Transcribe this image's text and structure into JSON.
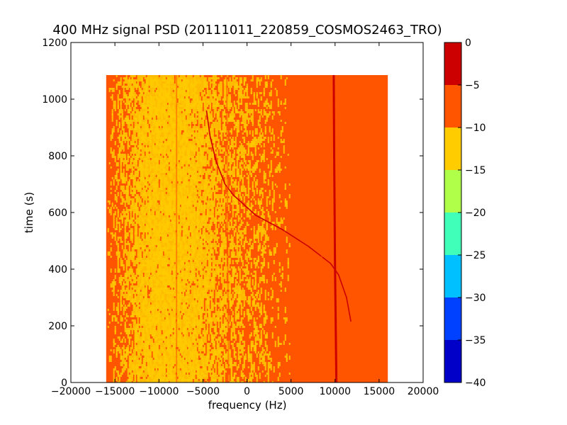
{
  "chart_data": {
    "type": "heatmap",
    "title": "400 MHz signal PSD (20111011_220859_COSMOS2463_TRO)",
    "xlabel": "frequency (Hz)",
    "ylabel": "time (s)",
    "xlim": [
      -20000,
      20000
    ],
    "ylim": [
      0,
      1200
    ],
    "xticks": [
      -20000,
      -15000,
      -10000,
      -5000,
      0,
      5000,
      10000,
      15000,
      20000
    ],
    "yticks": [
      0,
      200,
      400,
      600,
      800,
      1000,
      1200
    ],
    "grid": false,
    "data_extent": {
      "x": [
        -16000,
        16000
      ],
      "y": [
        0,
        1085
      ]
    },
    "background_level": "-10 to -5",
    "band_profile": [
      {
        "x": -16000,
        "level": "-10 to -5"
      },
      {
        "x": -13500,
        "level": "-10 to -5 mixed with -15 to -10"
      },
      {
        "x": -11000,
        "level": "-15 to -10"
      },
      {
        "x": -9000,
        "level": "-15 to -10"
      },
      {
        "x": -7000,
        "level": "-15 to -10 mixed with -10 to -5"
      },
      {
        "x": -3000,
        "level": "-10 to -5 mixed with -15 to -10"
      },
      {
        "x": 5000,
        "level": "-10 to -5"
      },
      {
        "x": 16000,
        "level": "-10 to -5"
      }
    ],
    "features": [
      {
        "name": "carrier",
        "level": "-5 to 0",
        "points": [
          [
            10150,
            0
          ],
          [
            10000,
            400
          ],
          [
            9900,
            800
          ],
          [
            9850,
            1085
          ]
        ]
      },
      {
        "name": "doppler-sweep",
        "level": "-5 to 0",
        "points": [
          [
            11800,
            215
          ],
          [
            11300,
            300
          ],
          [
            10400,
            380
          ],
          [
            9500,
            420
          ],
          [
            7000,
            480
          ],
          [
            4000,
            540
          ],
          [
            1000,
            590
          ],
          [
            -1500,
            660
          ],
          [
            -2500,
            700
          ],
          [
            -3500,
            780
          ],
          [
            -4200,
            870
          ],
          [
            -4600,
            960
          ]
        ]
      },
      {
        "name": "faint-line-1",
        "level": "-10 to -5",
        "points": [
          [
            -8000,
            0
          ],
          [
            -8000,
            1085
          ]
        ]
      },
      {
        "name": "faint-line-2",
        "level": "-10 to -5",
        "points": [
          [
            -2100,
            0
          ],
          [
            -2300,
            1085
          ]
        ]
      },
      {
        "name": "faint-line-3",
        "level": "-10 to -5",
        "points": [
          [
            8400,
            0
          ],
          [
            8600,
            1085
          ]
        ]
      }
    ],
    "colorbar": {
      "ticks": [
        0,
        -5,
        -10,
        -15,
        -20,
        -25,
        -30,
        -35,
        -40
      ],
      "levels": [
        {
          "range": [
            -40,
            -35
          ],
          "color": "#0000c8"
        },
        {
          "range": [
            -35,
            -30
          ],
          "color": "#0040ff"
        },
        {
          "range": [
            -30,
            -25
          ],
          "color": "#00c0ff"
        },
        {
          "range": [
            -25,
            -20
          ],
          "color": "#40ffb8"
        },
        {
          "range": [
            -20,
            -15
          ],
          "color": "#b0ff48"
        },
        {
          "range": [
            -15,
            -10
          ],
          "color": "#ffcc00"
        },
        {
          "range": [
            -10,
            -5
          ],
          "color": "#ff5500"
        },
        {
          "range": [
            -5,
            0
          ],
          "color": "#cc0000"
        }
      ]
    }
  }
}
